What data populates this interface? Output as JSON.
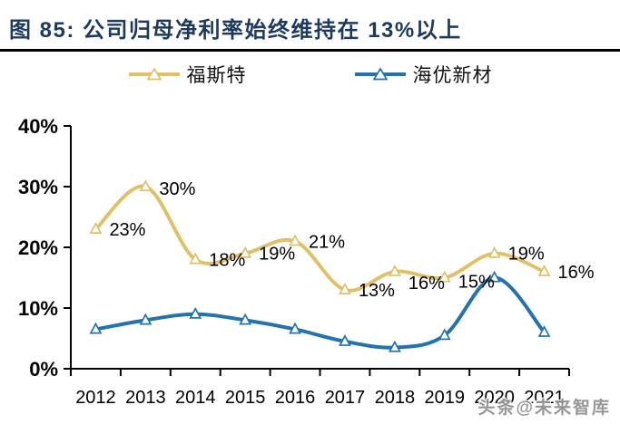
{
  "header": {
    "title": "图 85:  公司归母净利率始终维持在 13%以上"
  },
  "watermark": "头条@未来智库",
  "chart_data": {
    "type": "line",
    "figure_label": "图 85",
    "title": "公司归母净利率始终维持在 13%以上",
    "categories": [
      "2012",
      "2013",
      "2014",
      "2015",
      "2016",
      "2017",
      "2018",
      "2019",
      "2020",
      "2021"
    ],
    "series": [
      {
        "name": "福斯特",
        "color": "#E0C169",
        "marker": "triangle-up",
        "values": [
          23,
          30,
          18,
          19,
          21,
          13,
          16,
          15,
          19,
          16
        ],
        "labels": [
          "23%",
          "30%",
          "18%",
          "19%",
          "21%",
          "13%",
          "16%",
          "15%",
          "19%",
          "16%"
        ]
      },
      {
        "name": "海优新材",
        "color": "#2273B0",
        "marker": "triangle-up",
        "values": [
          6.5,
          8,
          9,
          8,
          6.5,
          4.5,
          3.5,
          5.5,
          15,
          6
        ],
        "labels": null
      }
    ],
    "xlabel": "",
    "ylabel": "",
    "yticks": [
      "0%",
      "10%",
      "20%",
      "30%",
      "40%"
    ],
    "ylim": [
      0,
      40
    ],
    "grid": false,
    "legend_position": "top",
    "axis_color": "#000000",
    "label_color": "#000000"
  }
}
